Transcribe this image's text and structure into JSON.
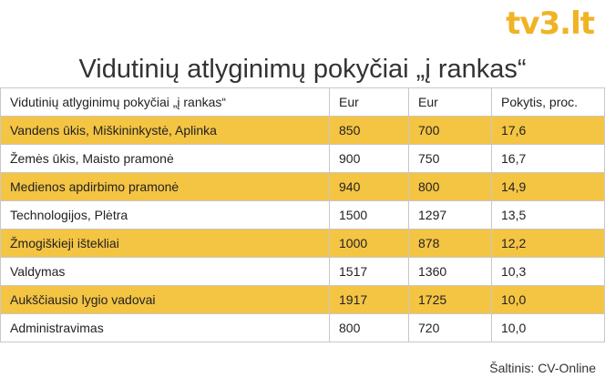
{
  "brand": {
    "logo_text": "tv3.lt",
    "accent": "#f4c443"
  },
  "chart_data": {
    "type": "table",
    "title": "Vidutinių atlyginimų pokyčiai „į rankas“",
    "columns": [
      "Vidutinių atlyginimų pokyčiai „į rankas“",
      "Eur",
      "Eur",
      "Pokytis, proc."
    ],
    "rows": [
      {
        "label": "Vandens ūkis, Miškininkystė, Aplinka",
        "a": "850",
        "b": "700",
        "change": "17,6",
        "highlight": true
      },
      {
        "label": "Žemės ūkis, Maisto pramonė",
        "a": "900",
        "b": "750",
        "change": "16,7",
        "highlight": false
      },
      {
        "label": "Medienos apdirbimo pramonė",
        "a": "940",
        "b": "800",
        "change": "14,9",
        "highlight": true
      },
      {
        "label": "Technologijos, Plėtra",
        "a": "1500",
        "b": "1297",
        "change": "13,5",
        "highlight": false
      },
      {
        "label": "Žmogiškieji ištekliai",
        "a": "1000",
        "b": "878",
        "change": "12,2",
        "highlight": true
      },
      {
        "label": "Valdymas",
        "a": "1517",
        "b": "1360",
        "change": "10,3",
        "highlight": false
      },
      {
        "label": "Aukščiausio lygio vadovai",
        "a": "1917",
        "b": "1725",
        "change": "10,0",
        "highlight": true
      },
      {
        "label": "Administravimas",
        "a": "800",
        "b": "720",
        "change": "10,0",
        "highlight": false
      }
    ]
  },
  "source": "Šaltinis: CV-Online"
}
